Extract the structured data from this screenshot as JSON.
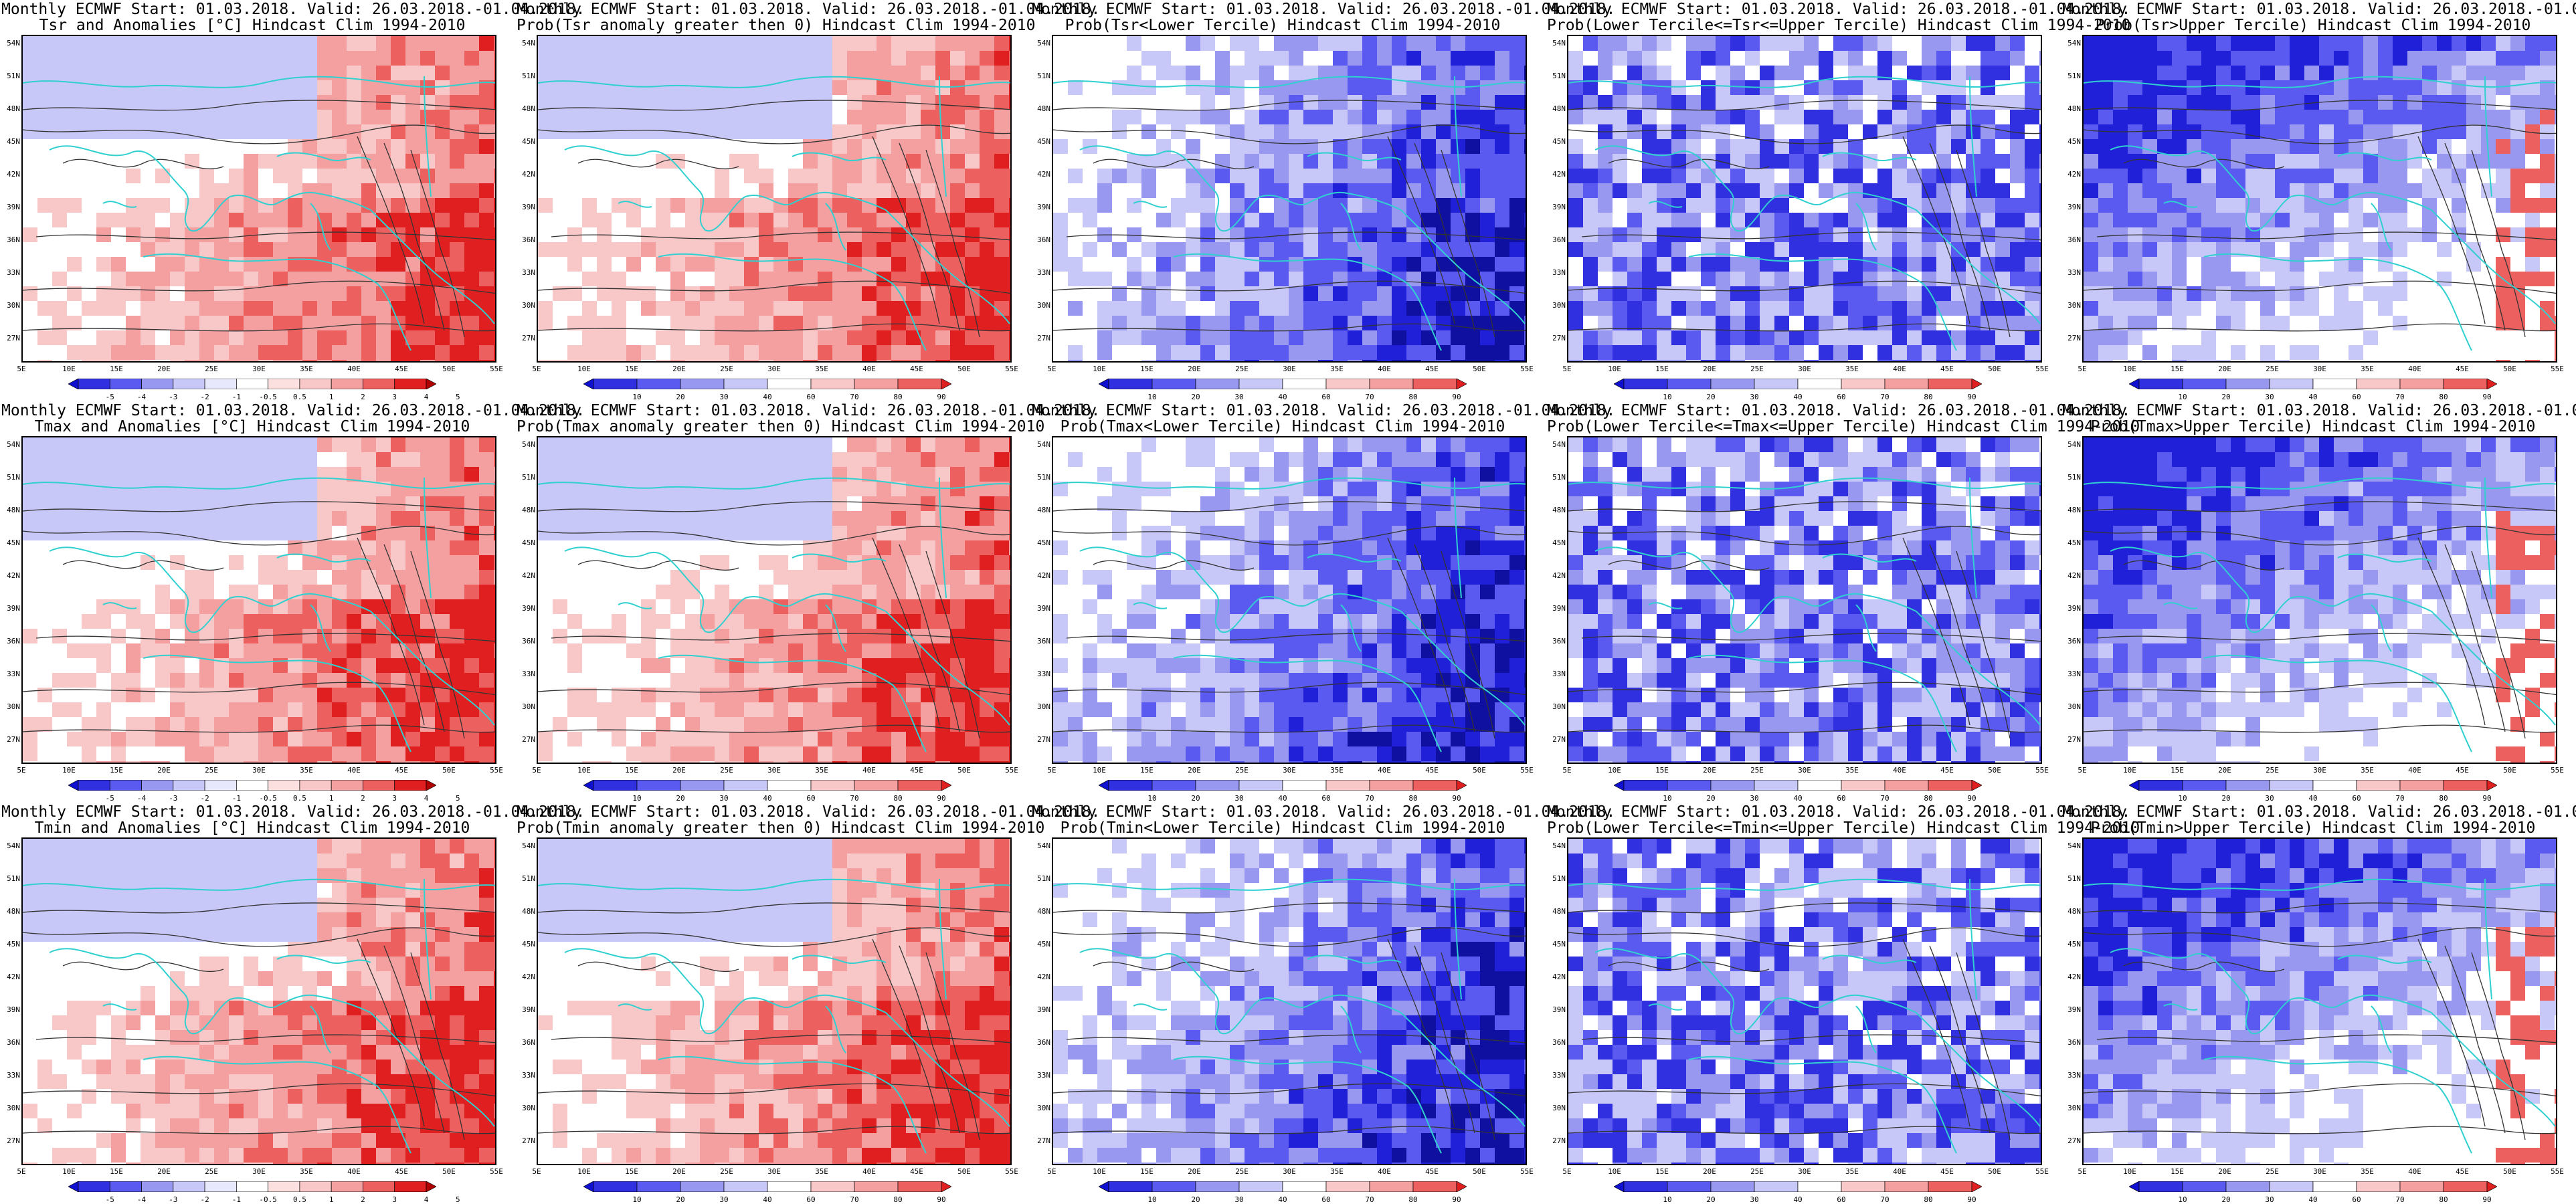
{
  "common_title": "Monthly ECMWF Start: 01.03.2018. Valid: 26.03.2018.-01.04.2018.",
  "lat_labels": [
    "54N",
    "51N",
    "48N",
    "45N",
    "42N",
    "39N",
    "36N",
    "33N",
    "30N",
    "27N"
  ],
  "lon_labels": [
    "5E",
    "10E",
    "15E",
    "20E",
    "25E",
    "30E",
    "35E",
    "40E",
    "45E",
    "50E",
    "55E"
  ],
  "anomaly_levels": [
    "-5",
    "-4",
    "-3",
    "-2",
    "-1",
    "-0.5",
    "0.5",
    "1",
    "2",
    "3",
    "4",
    "5"
  ],
  "prob_levels": [
    "10",
    "20",
    "30",
    "40",
    "60",
    "70",
    "80",
    "90"
  ],
  "colors": {
    "blue_dark": "#1010d0",
    "blue_mid": "#5a5af0",
    "blue_light": "#c8c8f8",
    "red_dark": "#e01010",
    "red_mid": "#f07070",
    "red_light": "#f8c8c8",
    "coast": "#30d0d0",
    "contour": "#333333"
  },
  "panels": [
    {
      "id": "p00",
      "subtitle": "Tsr and Anomalies [°C] Hindcast Clim 1994-2010",
      "legend": "anomaly",
      "style": "anom",
      "seed": 1
    },
    {
      "id": "p01",
      "subtitle": "Prob(Tsr anomaly greater then 0) Hindcast Clim 1994-2010",
      "legend": "prob",
      "style": "pgt",
      "seed": 2
    },
    {
      "id": "p02",
      "subtitle": "Prob(Tsr<Lower Tercile) Hindcast Clim 1994-2010",
      "legend": "prob",
      "style": "plow",
      "seed": 3
    },
    {
      "id": "p03",
      "subtitle": "Prob(Lower Tercile<=Tsr<=Upper Tercile) Hindcast Clim 1994-2010",
      "legend": "prob",
      "style": "pmid",
      "seed": 4
    },
    {
      "id": "p04",
      "subtitle": "Prob(Tsr>Upper Tercile) Hindcast Clim 1994-2010",
      "legend": "prob",
      "style": "pup",
      "seed": 5
    },
    {
      "id": "p10",
      "subtitle": "Tmax and Anomalies [°C] Hindcast Clim 1994-2010",
      "legend": "anomaly",
      "style": "anom",
      "seed": 6
    },
    {
      "id": "p11",
      "subtitle": "Prob(Tmax anomaly greater then 0) Hindcast Clim 1994-2010",
      "legend": "prob",
      "style": "pgt",
      "seed": 7
    },
    {
      "id": "p12",
      "subtitle": "Prob(Tmax<Lower Tercile) Hindcast Clim 1994-2010",
      "legend": "prob",
      "style": "plow",
      "seed": 8
    },
    {
      "id": "p13",
      "subtitle": "Prob(Lower Tercile<=Tmax<=Upper Tercile) Hindcast Clim 1994-2010",
      "legend": "prob",
      "style": "pmid",
      "seed": 9
    },
    {
      "id": "p14",
      "subtitle": "Prob(Tmax>Upper Tercile) Hindcast Clim 1994-2010",
      "legend": "prob",
      "style": "pup",
      "seed": 10
    },
    {
      "id": "p20",
      "subtitle": "Tmin and Anomalies [°C] Hindcast Clim 1994-2010",
      "legend": "anomaly",
      "style": "anom",
      "seed": 11
    },
    {
      "id": "p21",
      "subtitle": "Prob(Tmin anomaly greater then 0) Hindcast Clim 1994-2010",
      "legend": "prob",
      "style": "pgt",
      "seed": 12
    },
    {
      "id": "p22",
      "subtitle": "Prob(Tmin<Lower Tercile) Hindcast Clim 1994-2010",
      "legend": "prob",
      "style": "plow",
      "seed": 13
    },
    {
      "id": "p23",
      "subtitle": "Prob(Lower Tercile<=Tmin<=Upper Tercile) Hindcast Clim 1994-2010",
      "legend": "prob",
      "style": "pmid",
      "seed": 14
    },
    {
      "id": "p24",
      "subtitle": "Prob(Tmin>Upper Tercile) Hindcast Clim 1994-2010",
      "legend": "prob",
      "style": "pup",
      "seed": 15
    }
  ]
}
